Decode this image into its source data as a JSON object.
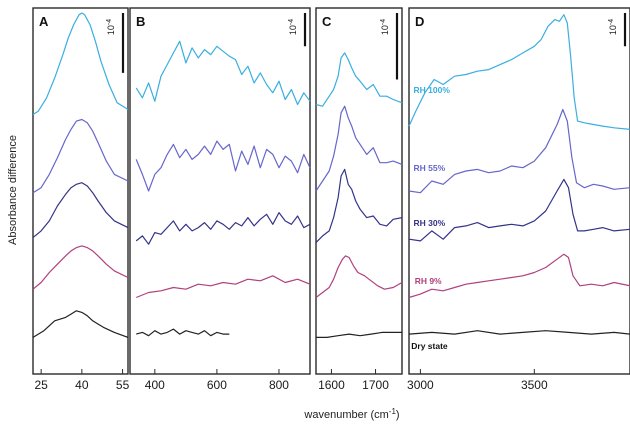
{
  "chart_data": {
    "type": "line",
    "ylabel": "Absorbance difference",
    "xlabel": "wavenumber (cm",
    "xlabel_sup": "-1",
    "xlabel_end": ")",
    "scale_bar_base": "10",
    "scale_bar_exp": "-4",
    "colors": {
      "dry": "#222222",
      "rh9": "#b0407e",
      "rh30": "#33338a",
      "rh55": "#6666cc",
      "rh100": "#3aaee0"
    },
    "series_order": [
      "dry",
      "rh9",
      "rh30",
      "rh55",
      "rh100"
    ],
    "panels": [
      {
        "label": "A",
        "xlim": [
          22,
          57
        ],
        "xticks": [
          25,
          40,
          55
        ],
        "ylim": [
          0,
          11
        ],
        "scale_bar": [
          9.05,
          10.85
        ],
        "series": {
          "dry": {
            "x": [
              22,
              26,
              30,
              34,
              36,
              38,
              40,
              42,
              44,
              46,
              48,
              52,
              57
            ],
            "y": [
              1.1,
              1.3,
              1.6,
              1.7,
              1.8,
              1.9,
              1.85,
              1.75,
              1.6,
              1.5,
              1.4,
              1.25,
              1.1
            ]
          },
          "rh9": {
            "x": [
              22,
              25,
              28,
              31,
              34,
              36,
              38,
              40,
              42,
              44,
              46,
              49,
              52,
              57
            ],
            "y": [
              2.55,
              2.75,
              3.05,
              3.3,
              3.55,
              3.7,
              3.8,
              3.85,
              3.8,
              3.7,
              3.55,
              3.3,
              3.1,
              2.9
            ]
          },
          "rh30": {
            "x": [
              22,
              25,
              28,
              31,
              34,
              36,
              38,
              40,
              42,
              44,
              46,
              49,
              52,
              57
            ],
            "y": [
              4.1,
              4.3,
              4.6,
              5.05,
              5.4,
              5.6,
              5.7,
              5.75,
              5.65,
              5.45,
              5.2,
              4.85,
              4.6,
              4.4
            ]
          },
          "rh55": {
            "x": [
              22,
              25,
              28,
              31,
              34,
              36,
              38,
              40,
              42,
              44,
              46,
              49,
              52,
              57
            ],
            "y": [
              5.45,
              5.6,
              6.0,
              6.5,
              7.05,
              7.35,
              7.6,
              7.65,
              7.55,
              7.3,
              6.95,
              6.4,
              6.0,
              5.8
            ]
          },
          "rh100": {
            "x": [
              22,
              24,
              27,
              30,
              33,
              35,
              37,
              39,
              40,
              41,
              43,
              45,
              47,
              50,
              53,
              57
            ],
            "y": [
              7.8,
              7.9,
              8.3,
              8.9,
              9.6,
              10.1,
              10.5,
              10.8,
              10.85,
              10.8,
              10.5,
              10.0,
              9.4,
              8.7,
              8.15,
              7.95
            ]
          }
        }
      },
      {
        "label": "B",
        "xlim": [
          320,
          900
        ],
        "xticks": [
          400,
          600,
          800
        ],
        "ylim": [
          0,
          11
        ],
        "scale_bar": [
          9.85,
          10.85
        ],
        "series": {
          "dry": {
            "x": [
              340,
              360,
              380,
              400,
              420,
              440,
              460,
              480,
              500,
              520,
              540,
              560,
              580,
              600,
              620,
              640
            ],
            "y": [
              1.2,
              1.25,
              1.15,
              1.3,
              1.2,
              1.25,
              1.35,
              1.2,
              1.3,
              1.25,
              1.2,
              1.3,
              1.15,
              1.25,
              1.2,
              1.2
            ]
          },
          "rh9": {
            "x": [
              340,
              380,
              420,
              460,
              500,
              540,
              580,
              620,
              660,
              700,
              740,
              780,
              820,
              860,
              900
            ],
            "y": [
              2.3,
              2.45,
              2.5,
              2.6,
              2.55,
              2.7,
              2.65,
              2.75,
              2.7,
              2.85,
              2.8,
              2.95,
              2.75,
              2.85,
              2.7
            ]
          },
          "rh30": {
            "x": [
              340,
              360,
              380,
              400,
              420,
              440,
              460,
              480,
              500,
              520,
              540,
              560,
              580,
              600,
              620,
              640,
              660,
              680,
              700,
              720,
              740,
              760,
              780,
              800,
              820,
              840,
              860,
              880,
              900
            ],
            "y": [
              4.0,
              4.15,
              3.9,
              4.25,
              4.2,
              4.4,
              4.6,
              4.3,
              4.5,
              4.3,
              4.4,
              4.55,
              4.35,
              4.6,
              4.5,
              4.35,
              4.55,
              4.45,
              4.7,
              4.45,
              4.65,
              4.8,
              4.5,
              4.85,
              4.6,
              4.5,
              4.75,
              4.4,
              4.5
            ]
          },
          "rh55": {
            "x": [
              340,
              360,
              380,
              400,
              420,
              440,
              460,
              480,
              500,
              520,
              540,
              560,
              580,
              600,
              620,
              640,
              660,
              680,
              700,
              720,
              740,
              760,
              780,
              800,
              820,
              840,
              860,
              880,
              900
            ],
            "y": [
              6.45,
              6.0,
              5.5,
              6.0,
              6.2,
              6.6,
              6.9,
              6.5,
              6.75,
              6.45,
              6.6,
              6.85,
              6.6,
              7.0,
              6.75,
              6.9,
              6.1,
              6.7,
              6.3,
              6.85,
              6.2,
              6.75,
              6.6,
              6.2,
              6.55,
              6.4,
              6.05,
              6.6,
              6.2
            ]
          },
          "rh100": {
            "x": [
              340,
              360,
              380,
              400,
              420,
              440,
              460,
              480,
              500,
              520,
              540,
              560,
              580,
              600,
              620,
              640,
              660,
              680,
              700,
              720,
              740,
              760,
              780,
              800,
              820,
              840,
              860,
              880,
              900
            ],
            "y": [
              8.6,
              8.3,
              8.75,
              8.2,
              8.95,
              9.3,
              9.65,
              10.0,
              9.35,
              9.8,
              9.5,
              9.75,
              9.6,
              9.85,
              9.7,
              9.55,
              9.45,
              9.0,
              9.25,
              8.75,
              9.05,
              8.7,
              8.45,
              8.8,
              8.25,
              8.55,
              8.1,
              8.45,
              8.2
            ]
          }
        }
      },
      {
        "label": "C",
        "xlim": [
          1565,
          1760
        ],
        "xticks": [
          1600,
          1700
        ],
        "ylim": [
          0,
          11
        ],
        "scale_bar": [
          8.85,
          10.85
        ],
        "series": {
          "dry": {
            "x": [
              1565,
              1590,
              1615,
              1640,
              1665,
              1690,
              1715,
              1740,
              1760
            ],
            "y": [
              1.1,
              1.1,
              1.15,
              1.2,
              1.15,
              1.2,
              1.25,
              1.25,
              1.25
            ]
          },
          "rh9": {
            "x": [
              1565,
              1580,
              1595,
              1605,
              1615,
              1625,
              1632,
              1640,
              1650,
              1660,
              1675,
              1690,
              1705,
              1720,
              1740,
              1760
            ],
            "y": [
              2.3,
              2.45,
              2.6,
              2.85,
              3.2,
              3.45,
              3.55,
              3.5,
              3.25,
              3.05,
              2.95,
              2.8,
              2.65,
              2.55,
              2.6,
              2.75
            ]
          },
          "rh30": {
            "x": [
              1565,
              1580,
              1595,
              1605,
              1615,
              1622,
              1630,
              1638,
              1646,
              1655,
              1665,
              1680,
              1695,
              1710,
              1725,
              1740,
              1760
            ],
            "y": [
              3.95,
              4.15,
              4.3,
              4.7,
              5.3,
              5.95,
              6.15,
              5.7,
              5.55,
              5.2,
              4.95,
              4.7,
              4.75,
              4.5,
              4.45,
              4.65,
              4.7
            ]
          },
          "rh55": {
            "x": [
              1565,
              1580,
              1595,
              1605,
              1615,
              1622,
              1630,
              1638,
              1646,
              1655,
              1665,
              1680,
              1695,
              1710,
              1725,
              1740,
              1760
            ],
            "y": [
              5.5,
              5.8,
              6.1,
              6.55,
              7.2,
              7.85,
              8.05,
              7.7,
              7.45,
              7.1,
              6.9,
              6.6,
              6.8,
              6.35,
              6.35,
              6.4,
              6.3
            ]
          },
          "rh100": {
            "x": [
              1565,
              1580,
              1595,
              1605,
              1615,
              1622,
              1630,
              1638,
              1646,
              1655,
              1665,
              1680,
              1695,
              1710,
              1725,
              1740,
              1760
            ],
            "y": [
              8.1,
              8.05,
              8.35,
              8.55,
              8.95,
              9.5,
              9.65,
              9.45,
              9.2,
              8.95,
              8.8,
              8.55,
              8.7,
              8.35,
              8.35,
              8.25,
              8.15
            ]
          }
        }
      },
      {
        "label": "D",
        "xlim": [
          2950,
          3920
        ],
        "xticks": [
          3000,
          3500
        ],
        "ylim": [
          0,
          11
        ],
        "scale_bar": [
          9.85,
          10.85
        ],
        "curve_labels": {
          "rh100": {
            "text": "RH 100%",
            "x": 2970,
            "y": 8.45
          },
          "rh55": {
            "text": "RH 55%",
            "x": 2970,
            "y": 6.1
          },
          "rh30": {
            "text": "RH 30%",
            "x": 2970,
            "y": 4.45
          },
          "rh9": {
            "text": "RH 9%",
            "x": 2975,
            "y": 2.7
          },
          "dry": {
            "text": "Dry state",
            "x": 2960,
            "y": 0.75
          }
        },
        "series": {
          "dry": {
            "x": [
              2950,
              3050,
              3150,
              3250,
              3350,
              3450,
              3550,
              3650,
              3750,
              3850,
              3920
            ],
            "y": [
              1.2,
              1.25,
              1.2,
              1.3,
              1.2,
              1.25,
              1.3,
              1.25,
              1.2,
              1.25,
              1.2
            ]
          },
          "rh9": {
            "x": [
              2950,
              3000,
              3050,
              3100,
              3150,
              3200,
              3250,
              3300,
              3350,
              3400,
              3450,
              3500,
              3550,
              3600,
              3630,
              3650,
              3670,
              3700,
              3750,
              3800,
              3850,
              3920
            ],
            "y": [
              2.3,
              2.4,
              2.55,
              2.5,
              2.6,
              2.7,
              2.75,
              2.8,
              2.85,
              2.9,
              2.95,
              3.05,
              3.2,
              3.45,
              3.6,
              3.5,
              2.95,
              2.65,
              2.7,
              2.65,
              2.75,
              2.65
            ]
          },
          "rh30": {
            "x": [
              2950,
              3000,
              3050,
              3100,
              3150,
              3200,
              3250,
              3300,
              3350,
              3400,
              3450,
              3500,
              3550,
              3600,
              3630,
              3650,
              3670,
              3690,
              3720,
              3760,
              3800,
              3850,
              3920
            ],
            "y": [
              4.05,
              4.0,
              4.3,
              4.05,
              4.4,
              4.45,
              4.55,
              4.4,
              4.45,
              4.5,
              4.45,
              4.6,
              4.9,
              5.5,
              5.85,
              5.6,
              4.8,
              4.3,
              4.3,
              4.35,
              4.4,
              4.3,
              4.35
            ]
          },
          "rh55": {
            "x": [
              2950,
              3000,
              3050,
              3100,
              3150,
              3200,
              3250,
              3300,
              3350,
              3400,
              3450,
              3500,
              3550,
              3600,
              3625,
              3645,
              3665,
              3685,
              3720,
              3760,
              3800,
              3850,
              3920
            ],
            "y": [
              5.5,
              5.45,
              5.8,
              5.7,
              6.0,
              6.1,
              6.15,
              6.05,
              6.1,
              6.25,
              6.2,
              6.4,
              6.8,
              7.5,
              7.95,
              7.6,
              6.5,
              5.75,
              5.6,
              5.7,
              5.65,
              5.55,
              5.6
            ]
          },
          "rh100": {
            "x": [
              2950,
              2980,
              3020,
              3060,
              3100,
              3150,
              3200,
              3250,
              3300,
              3350,
              3400,
              3450,
              3500,
              3530,
              3560,
              3590,
              3610,
              3630,
              3645,
              3660,
              3675,
              3690,
              3720,
              3760,
              3800,
              3850,
              3920
            ],
            "y": [
              7.45,
              7.9,
              8.45,
              8.85,
              8.7,
              8.95,
              9.0,
              9.1,
              9.15,
              9.3,
              9.45,
              9.65,
              9.85,
              10.05,
              10.45,
              10.65,
              10.6,
              10.8,
              10.55,
              9.5,
              8.3,
              7.6,
              7.55,
              7.5,
              7.45,
              7.4,
              7.35
            ]
          }
        }
      }
    ]
  }
}
